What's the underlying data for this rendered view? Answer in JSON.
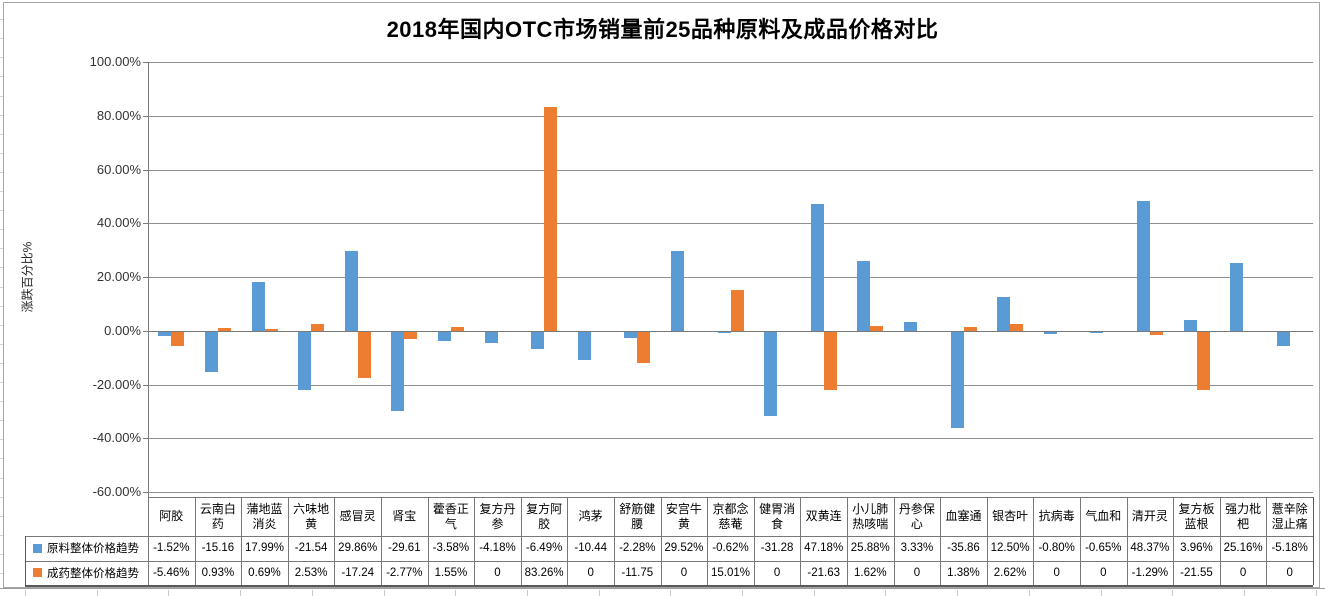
{
  "title": "2018年国内OTC市场销量前25品种原料及成品价格对比",
  "y_axis": {
    "label": "涨跌百分比%",
    "ticks": [
      "100.00%",
      "80.00%",
      "60.00%",
      "40.00%",
      "20.00%",
      "0.00%",
      "-20.00%",
      "-40.00%",
      "-60.00%"
    ]
  },
  "chart_data": {
    "type": "bar",
    "title": "2018年国内OTC市场销量前25品种原料及成品价格对比",
    "ylabel": "涨跌百分比%",
    "ylim": [
      -60,
      100
    ],
    "ytick_step": 20,
    "grid": true,
    "legend_position": "data-table-left",
    "categories": [
      "阿胶",
      "云南白药",
      "蒲地蓝消炎",
      "六味地黄",
      "感冒灵",
      "肾宝",
      "藿香正气",
      "复方丹参",
      "复方阿胶",
      "鸿茅",
      "舒筋健腰",
      "安宫牛黄",
      "京都念慈菴",
      "健胃消食",
      "双黄连",
      "小儿肺热咳喘",
      "丹参保心",
      "血塞通",
      "银杏叶",
      "抗病毒",
      "气血和",
      "清开灵",
      "复方板蓝根",
      "强力枇杷",
      "薏辛除湿止痛"
    ],
    "series": [
      {
        "name": "原料整体价格趋势",
        "color": "#5B9BD5",
        "values": [
          -1.52,
          -15.16,
          17.99,
          -21.54,
          29.86,
          -29.61,
          -3.58,
          -4.18,
          -6.49,
          -10.44,
          -2.28,
          29.52,
          -0.62,
          -31.28,
          47.18,
          25.88,
          3.33,
          -35.86,
          12.5,
          -0.8,
          -0.65,
          48.37,
          3.96,
          25.16,
          -5.18
        ],
        "display": [
          "-1.52%",
          "-15.16",
          "17.99%",
          "-21.54",
          "29.86%",
          "-29.61",
          "-3.58%",
          "-4.18%",
          "-6.49%",
          "-10.44",
          "-2.28%",
          "29.52%",
          "-0.62%",
          "-31.28",
          "47.18%",
          "25.88%",
          "3.33%",
          "-35.86",
          "12.50%",
          "-0.80%",
          "-0.65%",
          "48.37%",
          "3.96%",
          "25.16%",
          "-5.18%"
        ]
      },
      {
        "name": "成药整体价格趋势",
        "color": "#ED7D31",
        "values": [
          -5.46,
          0.93,
          0.69,
          2.53,
          -17.24,
          -2.77,
          1.55,
          0,
          83.26,
          0,
          -11.75,
          0,
          15.01,
          0,
          -21.63,
          1.62,
          0,
          1.38,
          2.62,
          0,
          0,
          -1.29,
          -21.55,
          0,
          0
        ],
        "display": [
          "-5.46%",
          "0.93%",
          "0.69%",
          "2.53%",
          "-17.24",
          "-2.77%",
          "1.55%",
          "0",
          "83.26%",
          "0",
          "-11.75",
          "0",
          "15.01%",
          "0",
          "-21.63",
          "1.62%",
          "0",
          "1.38%",
          "2.62%",
          "0",
          "0",
          "-1.29%",
          "-21.55",
          "0",
          "0"
        ]
      }
    ]
  },
  "colors": {
    "series1": "#5B9BD5",
    "series2": "#ED7D31",
    "gridline": "#8f8f8f",
    "table_border": "#787878"
  }
}
